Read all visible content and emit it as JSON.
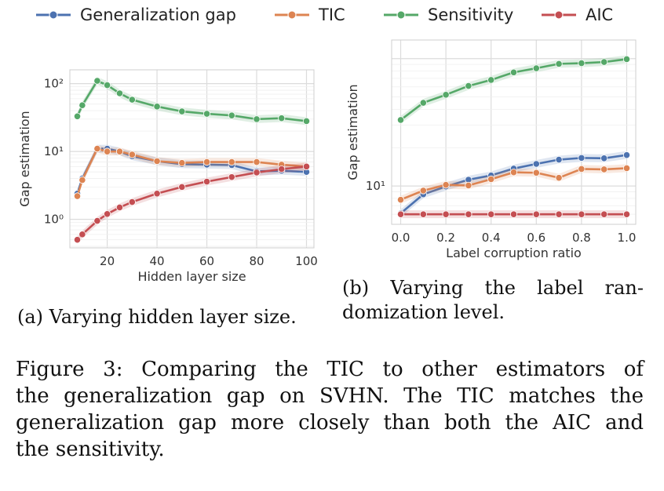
{
  "legend": {
    "entries": [
      {
        "name": "Generalization gap",
        "color": "#4c72b0"
      },
      {
        "name": "TIC",
        "color": "#dd8452"
      },
      {
        "name": "Sensitivity",
        "color": "#55a868"
      },
      {
        "name": "AIC",
        "color": "#c44e52"
      }
    ]
  },
  "chart_data": [
    {
      "type": "line",
      "panel": "a",
      "xlabel": "Hidden layer size",
      "ylabel": "Gap estimation",
      "yscale": "log",
      "xlim": [
        5,
        103
      ],
      "ylim": [
        0.38,
        160
      ],
      "xticks": [
        20,
        40,
        60,
        80,
        100
      ],
      "yticks": [
        {
          "value": 1,
          "label": "10⁰"
        },
        {
          "value": 10,
          "label": "10¹"
        },
        {
          "value": 100,
          "label": "10²"
        }
      ],
      "grid": true,
      "x": [
        8,
        10,
        16,
        20,
        25,
        30,
        40,
        50,
        60,
        70,
        80,
        90,
        100
      ],
      "series": [
        {
          "name": "Generalization gap",
          "color": "#4c72b0",
          "values": [
            2.4,
            4.0,
            11.0,
            11.0,
            10.0,
            8.5,
            7.2,
            6.5,
            6.4,
            6.3,
            5.1,
            5.2,
            5.0
          ]
        },
        {
          "name": "TIC",
          "color": "#dd8452",
          "values": [
            2.2,
            3.8,
            11.0,
            10.0,
            10.0,
            9.0,
            7.2,
            6.8,
            7.0,
            7.0,
            7.0,
            6.4,
            6.0
          ]
        },
        {
          "name": "Sensitivity",
          "color": "#55a868",
          "values": [
            33,
            48,
            110,
            95,
            72,
            58,
            46,
            39,
            36,
            34,
            30,
            31,
            28
          ]
        },
        {
          "name": "AIC",
          "color": "#c44e52",
          "values": [
            0.5,
            0.6,
            0.95,
            1.2,
            1.5,
            1.8,
            2.4,
            3.0,
            3.6,
            4.2,
            4.9,
            5.5,
            6.0
          ]
        }
      ]
    },
    {
      "type": "line",
      "panel": "b",
      "xlabel": "Label corruption ratio",
      "ylabel": "Gap estimation",
      "yscale": "log",
      "xlim": [
        -0.04,
        1.04
      ],
      "ylim": [
        5.0,
        140
      ],
      "xticks": [
        0.0,
        0.2,
        0.4,
        0.6,
        0.8,
        1.0
      ],
      "yticks": [
        {
          "value": 10,
          "label": "10¹"
        }
      ],
      "grid": true,
      "x": [
        0.0,
        0.1,
        0.2,
        0.3,
        0.4,
        0.5,
        0.6,
        0.7,
        0.8,
        0.9,
        1.0
      ],
      "series": [
        {
          "name": "Generalization gap",
          "color": "#4c72b0",
          "values": [
            6.1,
            8.6,
            9.9,
            11.2,
            12.1,
            13.7,
            14.9,
            16.1,
            16.6,
            16.5,
            17.5
          ]
        },
        {
          "name": "TIC",
          "color": "#dd8452",
          "values": [
            7.8,
            9.2,
            10.2,
            10.1,
            11.3,
            12.8,
            12.7,
            11.6,
            13.6,
            13.5,
            13.8
          ]
        },
        {
          "name": "Sensitivity",
          "color": "#55a868",
          "values": [
            33,
            45,
            52,
            61,
            68,
            78,
            84,
            91,
            92,
            94,
            99
          ]
        },
        {
          "name": "AIC",
          "color": "#c44e52",
          "values": [
            6.0,
            6.0,
            6.0,
            6.0,
            6.0,
            6.0,
            6.0,
            6.0,
            6.0,
            6.0,
            6.0
          ]
        }
      ]
    }
  ],
  "captions": {
    "a": "(a) Varying hidden layer size.",
    "b_line1": "(b) Varying the label ran-",
    "b_line2": "domization level.",
    "figure_lines": [
      "Figure 3: Comparing the TIC to other estimators of",
      "the generalization gap on SVHN. The TIC matches the",
      "generalization gap more closely than both the AIC and",
      "the sensitivity."
    ]
  }
}
